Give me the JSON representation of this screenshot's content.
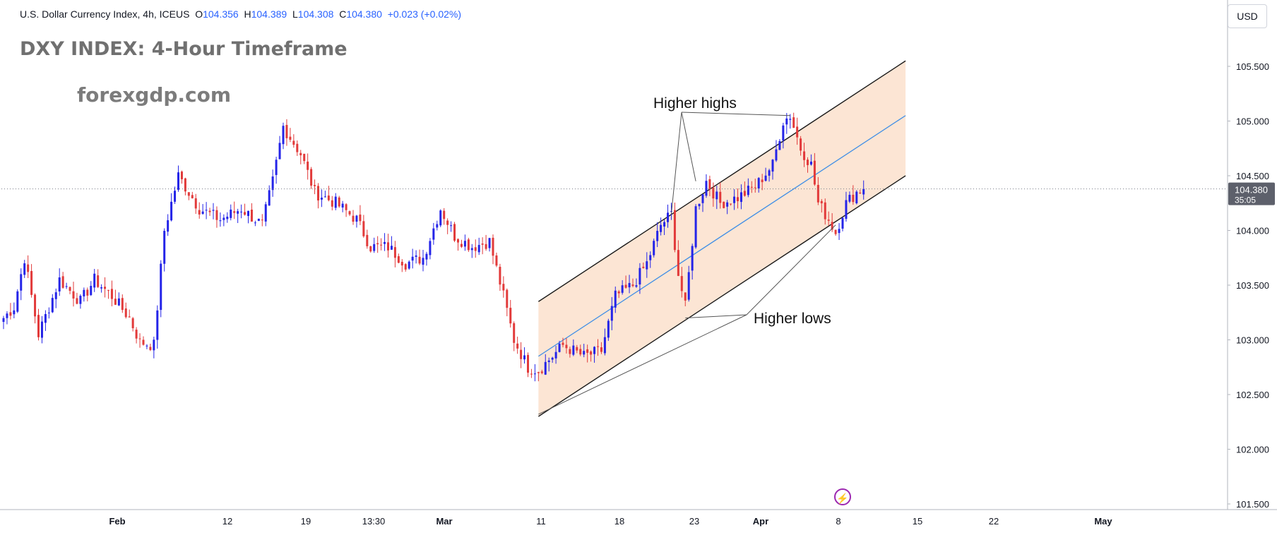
{
  "header": {
    "symbol_name": "U.S. Dollar Currency Index, 4h, ICEUS",
    "open_label": "O",
    "open": "104.356",
    "high_label": "H",
    "high": "104.389",
    "low_label": "L",
    "low": "104.308",
    "close_label": "C",
    "close": "104.380",
    "change": "+0.023 (+0.02%)"
  },
  "overlay": {
    "title": "DXY INDEX: 4-Hour Timeframe",
    "watermark": "forexgdp.com",
    "annotation_highs": "Higher highs",
    "annotation_lows": "Higher lows"
  },
  "price_scale": {
    "currency": "USD",
    "last_price": "104.380",
    "countdown": "35:05",
    "label_color": "#5d606b"
  },
  "icons": {
    "events": "lightning-icon"
  },
  "colors": {
    "up": "#2424e8",
    "down": "#e23a3a",
    "channel_fill": "#fbdcc6",
    "channel_line": "#1a1a1a",
    "midline": "#3d8de6",
    "price_line": "#787b86"
  },
  "chart_data": {
    "type": "candlestick",
    "title": "DXY INDEX: 4-Hour Timeframe",
    "symbol": "U.S. Dollar Currency Index, 4h, ICEUS",
    "ylim": [
      101.45,
      105.95
    ],
    "y_ticks": [
      "105.500",
      "105.000",
      "104.500",
      "104.000",
      "103.500",
      "103.000",
      "102.500",
      "102.000",
      "101.500"
    ],
    "x_ticks": [
      "Feb",
      "12",
      "19",
      "13:30",
      "Mar",
      "11",
      "18",
      "23",
      "Apr",
      "8",
      "15",
      "22",
      "May"
    ],
    "last_price": 104.38,
    "grid": false,
    "waypoints": [
      [
        0,
        103.2
      ],
      [
        3,
        103.3
      ],
      [
        6,
        103.75
      ],
      [
        10,
        103.05
      ],
      [
        16,
        103.55
      ],
      [
        22,
        103.35
      ],
      [
        26,
        103.55
      ],
      [
        31,
        103.4
      ],
      [
        36,
        103.2
      ],
      [
        39,
        102.98
      ],
      [
        43,
        102.95
      ],
      [
        46,
        104.0
      ],
      [
        50,
        104.5
      ],
      [
        56,
        104.2
      ],
      [
        62,
        104.1
      ],
      [
        68,
        104.2
      ],
      [
        74,
        104.05
      ],
      [
        77,
        104.45
      ],
      [
        80,
        104.95
      ],
      [
        85,
        104.7
      ],
      [
        89,
        104.35
      ],
      [
        95,
        104.25
      ],
      [
        101,
        104.1
      ],
      [
        105,
        103.85
      ],
      [
        110,
        103.85
      ],
      [
        115,
        103.7
      ],
      [
        120,
        103.75
      ],
      [
        125,
        104.2
      ],
      [
        129,
        103.95
      ],
      [
        134,
        103.85
      ],
      [
        139,
        103.9
      ],
      [
        143,
        103.4
      ],
      [
        146,
        103.0
      ],
      [
        150,
        102.75
      ],
      [
        153,
        102.72
      ],
      [
        160,
        102.95
      ],
      [
        166,
        102.85
      ],
      [
        171,
        102.9
      ],
      [
        175,
        103.4
      ],
      [
        180,
        103.5
      ],
      [
        184,
        103.7
      ],
      [
        188,
        104.05
      ],
      [
        191,
        104.15
      ],
      [
        193,
        103.6
      ],
      [
        195,
        103.3
      ],
      [
        198,
        104.2
      ],
      [
        201,
        104.45
      ],
      [
        205,
        104.25
      ],
      [
        210,
        104.3
      ],
      [
        215,
        104.4
      ],
      [
        220,
        104.6
      ],
      [
        223,
        105.0
      ],
      [
        225,
        105.05
      ],
      [
        228,
        104.75
      ],
      [
        231,
        104.6
      ],
      [
        233,
        104.25
      ],
      [
        236,
        104.1
      ],
      [
        238,
        103.98
      ],
      [
        241,
        104.25
      ],
      [
        244,
        104.35
      ],
      [
        246,
        104.38
      ]
    ],
    "channel": {
      "lower": [
        [
          153,
          102.3
        ],
        [
          258,
          104.5
        ]
      ],
      "upper": [
        [
          153,
          103.35
        ],
        [
          258,
          105.55
        ]
      ],
      "midline": [
        [
          153,
          102.85
        ],
        [
          258,
          105.05
        ]
      ]
    },
    "annotations": [
      {
        "text": "Higher highs",
        "points": [
          [
            191,
            104.15
          ],
          [
            198,
            104.45
          ],
          [
            225,
            105.05
          ]
        ]
      },
      {
        "text": "Higher lows",
        "points": [
          [
            153,
            102.32
          ],
          [
            195,
            103.2
          ],
          [
            238,
            104.05
          ]
        ]
      }
    ]
  }
}
